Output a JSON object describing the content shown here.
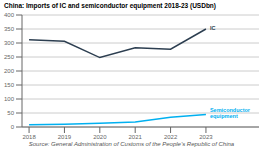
{
  "chart_data": {
    "type": "line",
    "title": "China: Imports of IC and semiconductor equipment 2018-23 (USDbn)",
    "annotations": [
      "Source: General Administration of Customs of the People’s Republic of China"
    ],
    "x": [
      2018,
      2019,
      2020,
      2021,
      2022,
      2023
    ],
    "series": [
      {
        "name": "IC",
        "color": "#2c3e50",
        "values": [
          312,
          306,
          248,
          283,
          278,
          350
        ]
      },
      {
        "name": "Semiconductor\nequipment",
        "color": "#00b0f0",
        "values": [
          8,
          10,
          13,
          18,
          35,
          45
        ]
      }
    ],
    "xlim": [
      2017.8,
      2024.5
    ],
    "xticks": [
      2018,
      2019,
      2020,
      2021,
      2022,
      2023
    ],
    "ylim": [
      0,
      400
    ],
    "yticks": [
      0,
      50,
      100,
      150,
      200,
      250,
      300,
      350,
      400
    ],
    "grid": true
  }
}
